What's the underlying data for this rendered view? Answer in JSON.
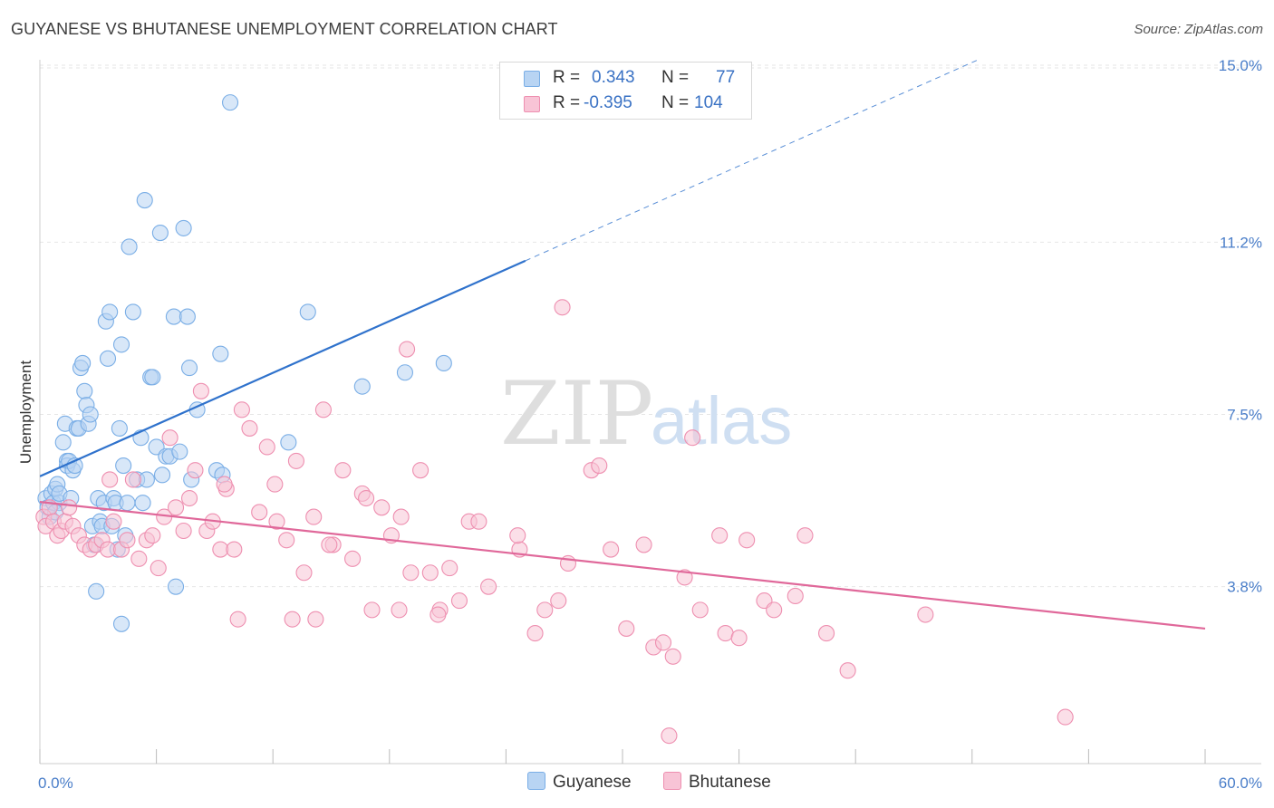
{
  "title": "GUYANESE VS BHUTANESE UNEMPLOYMENT CORRELATION CHART",
  "source": "Source: ZipAtlas.com",
  "watermark": {
    "zip": "ZIP",
    "atlas": "atlas"
  },
  "colors": {
    "guyanese": "#7aaee6",
    "guyanese_fill": "#b8d4f3",
    "guyanese_line": "#2f72cc",
    "bhutanese": "#ee8fb0",
    "bhutanese_fill": "#f8c4d6",
    "bhutanese_line": "#e0689a",
    "tick_text": "#4a7ec9",
    "grid": "#e6e6e6"
  },
  "legend": {
    "rows": [
      {
        "r_label": "R =",
        "r_value": "0.343",
        "n_label": "N =",
        "n_value": "77"
      },
      {
        "r_label": "R =",
        "r_value": "-0.395",
        "n_label": "N =",
        "n_value": "104"
      }
    ]
  },
  "bottom_legend": [
    "Guyanese",
    "Bhutanese"
  ],
  "chart_data": {
    "type": "scatter",
    "title": "GUYANESE VS BHUTANESE UNEMPLOYMENT CORRELATION CHART",
    "xlabel": "",
    "ylabel": "Unemployment",
    "xlim": [
      0,
      60
    ],
    "ylim": [
      0,
      15.7
    ],
    "x_tick_labels": [
      {
        "value": 0,
        "label": "0.0%"
      },
      {
        "value": 60,
        "label": "60.0%"
      }
    ],
    "y_ticks": [
      {
        "value": 3.8,
        "label": "3.8%"
      },
      {
        "value": 7.5,
        "label": "7.5%"
      },
      {
        "value": 11.2,
        "label": "11.2%"
      },
      {
        "value": 15.0,
        "label": "15.0%"
      }
    ],
    "x_minor_ticks": [
      0,
      6,
      12,
      18,
      24,
      30,
      36,
      42,
      48,
      54,
      60
    ],
    "legend_position": "top-center",
    "series": [
      {
        "name": "Guyanese",
        "trend": {
          "x0": 0,
          "y0": 6.17,
          "x1": 25,
          "y1": 10.8,
          "dashed_to_x": 60
        },
        "points": [
          [
            0.3,
            5.7
          ],
          [
            0.4,
            5.5
          ],
          [
            0.5,
            5.3
          ],
          [
            0.6,
            5.8
          ],
          [
            0.7,
            5.6
          ],
          [
            0.8,
            5.9
          ],
          [
            0.9,
            6.0
          ],
          [
            1.0,
            5.6
          ],
          [
            0.8,
            5.4
          ],
          [
            1.0,
            5.8
          ],
          [
            1.2,
            6.9
          ],
          [
            1.3,
            7.3
          ],
          [
            1.4,
            6.5
          ],
          [
            1.4,
            6.4
          ],
          [
            1.5,
            6.5
          ],
          [
            1.6,
            5.7
          ],
          [
            1.7,
            6.3
          ],
          [
            1.8,
            6.4
          ],
          [
            1.9,
            7.2
          ],
          [
            2.0,
            7.2
          ],
          [
            2.1,
            8.5
          ],
          [
            2.2,
            8.6
          ],
          [
            2.3,
            8.0
          ],
          [
            2.4,
            7.7
          ],
          [
            2.5,
            7.3
          ],
          [
            2.6,
            7.5
          ],
          [
            2.7,
            5.1
          ],
          [
            2.8,
            4.7
          ],
          [
            2.9,
            3.7
          ],
          [
            3.0,
            5.7
          ],
          [
            3.1,
            5.2
          ],
          [
            3.2,
            5.1
          ],
          [
            3.3,
            5.6
          ],
          [
            3.4,
            9.5
          ],
          [
            3.5,
            8.7
          ],
          [
            3.6,
            9.7
          ],
          [
            3.7,
            5.1
          ],
          [
            3.8,
            5.7
          ],
          [
            3.9,
            5.6
          ],
          [
            4.0,
            4.6
          ],
          [
            4.1,
            7.2
          ],
          [
            4.2,
            9.0
          ],
          [
            4.3,
            6.4
          ],
          [
            4.4,
            4.9
          ],
          [
            4.5,
            5.6
          ],
          [
            4.6,
            11.1
          ],
          [
            4.8,
            9.7
          ],
          [
            5.0,
            6.1
          ],
          [
            5.2,
            7.0
          ],
          [
            5.3,
            5.6
          ],
          [
            5.4,
            12.1
          ],
          [
            5.5,
            6.1
          ],
          [
            5.7,
            8.3
          ],
          [
            5.8,
            8.3
          ],
          [
            6.0,
            6.8
          ],
          [
            6.2,
            11.4
          ],
          [
            6.3,
            6.2
          ],
          [
            6.5,
            6.6
          ],
          [
            6.7,
            6.6
          ],
          [
            6.9,
            9.6
          ],
          [
            7.0,
            3.8
          ],
          [
            7.2,
            6.7
          ],
          [
            7.4,
            11.5
          ],
          [
            7.6,
            9.6
          ],
          [
            7.7,
            8.5
          ],
          [
            7.8,
            6.1
          ],
          [
            8.1,
            7.6
          ],
          [
            9.1,
            6.3
          ],
          [
            9.3,
            8.8
          ],
          [
            9.4,
            6.2
          ],
          [
            9.8,
            14.2
          ],
          [
            12.8,
            6.9
          ],
          [
            13.8,
            9.7
          ],
          [
            16.6,
            8.1
          ],
          [
            18.8,
            8.4
          ],
          [
            20.8,
            8.6
          ],
          [
            4.2,
            3.0
          ]
        ]
      },
      {
        "name": "Bhutanese",
        "trend": {
          "x0": 0,
          "y0": 5.62,
          "x1": 60,
          "y1": 2.9
        },
        "points": [
          [
            0.2,
            5.3
          ],
          [
            0.3,
            5.1
          ],
          [
            0.5,
            5.5
          ],
          [
            0.7,
            5.2
          ],
          [
            0.9,
            4.9
          ],
          [
            1.1,
            5.0
          ],
          [
            1.3,
            5.2
          ],
          [
            1.5,
            5.5
          ],
          [
            1.7,
            5.1
          ],
          [
            2.0,
            4.9
          ],
          [
            2.3,
            4.7
          ],
          [
            2.6,
            4.6
          ],
          [
            2.9,
            4.7
          ],
          [
            3.2,
            4.8
          ],
          [
            3.5,
            4.6
          ],
          [
            3.8,
            5.2
          ],
          [
            4.2,
            4.6
          ],
          [
            4.5,
            4.8
          ],
          [
            4.8,
            6.1
          ],
          [
            5.1,
            4.4
          ],
          [
            5.5,
            4.8
          ],
          [
            5.8,
            4.9
          ],
          [
            6.1,
            4.2
          ],
          [
            6.4,
            5.3
          ],
          [
            6.7,
            7.0
          ],
          [
            7.0,
            5.5
          ],
          [
            7.4,
            5.0
          ],
          [
            7.7,
            5.7
          ],
          [
            8.0,
            6.3
          ],
          [
            8.3,
            8.0
          ],
          [
            8.6,
            5.0
          ],
          [
            8.9,
            5.2
          ],
          [
            9.3,
            4.6
          ],
          [
            9.6,
            5.9
          ],
          [
            10.0,
            4.6
          ],
          [
            10.4,
            7.6
          ],
          [
            10.8,
            7.2
          ],
          [
            11.3,
            5.4
          ],
          [
            11.7,
            6.8
          ],
          [
            12.2,
            5.2
          ],
          [
            12.7,
            4.8
          ],
          [
            13.2,
            6.5
          ],
          [
            13.6,
            4.1
          ],
          [
            14.1,
            5.3
          ],
          [
            14.6,
            7.6
          ],
          [
            15.1,
            4.7
          ],
          [
            15.6,
            6.3
          ],
          [
            16.1,
            4.4
          ],
          [
            16.6,
            5.8
          ],
          [
            17.1,
            3.3
          ],
          [
            17.6,
            5.5
          ],
          [
            18.1,
            4.9
          ],
          [
            18.6,
            5.3
          ],
          [
            19.1,
            4.1
          ],
          [
            19.6,
            6.3
          ],
          [
            20.1,
            4.1
          ],
          [
            20.6,
            3.3
          ],
          [
            21.1,
            4.2
          ],
          [
            21.6,
            3.5
          ],
          [
            22.1,
            5.2
          ],
          [
            22.6,
            5.2
          ],
          [
            23.1,
            3.8
          ],
          [
            24.7,
            4.6
          ],
          [
            25.5,
            2.8
          ],
          [
            26.0,
            3.3
          ],
          [
            26.7,
            3.5
          ],
          [
            27.2,
            4.3
          ],
          [
            28.4,
            6.3
          ],
          [
            28.8,
            6.4
          ],
          [
            29.4,
            4.6
          ],
          [
            30.2,
            2.9
          ],
          [
            31.1,
            4.7
          ],
          [
            31.6,
            2.5
          ],
          [
            32.1,
            2.6
          ],
          [
            32.6,
            2.3
          ],
          [
            33.2,
            4.0
          ],
          [
            34.0,
            3.3
          ],
          [
            35.3,
            2.8
          ],
          [
            36.0,
            2.7
          ],
          [
            36.4,
            4.8
          ],
          [
            37.3,
            3.5
          ],
          [
            37.8,
            3.3
          ],
          [
            38.9,
            3.6
          ],
          [
            39.4,
            4.9
          ],
          [
            40.5,
            2.8
          ],
          [
            41.6,
            2.0
          ],
          [
            45.6,
            3.2
          ],
          [
            52.8,
            1.0
          ],
          [
            12.1,
            6.0
          ],
          [
            14.9,
            4.7
          ],
          [
            16.8,
            5.7
          ],
          [
            9.5,
            6.0
          ],
          [
            3.6,
            6.1
          ],
          [
            13.0,
            3.1
          ],
          [
            14.2,
            3.1
          ],
          [
            10.2,
            3.1
          ],
          [
            18.9,
            8.9
          ],
          [
            20.5,
            3.2
          ],
          [
            18.5,
            3.3
          ],
          [
            26.9,
            9.8
          ],
          [
            33.6,
            7.0
          ],
          [
            35.0,
            4.9
          ],
          [
            24.6,
            4.9
          ],
          [
            32.4,
            0.6
          ]
        ]
      }
    ]
  }
}
